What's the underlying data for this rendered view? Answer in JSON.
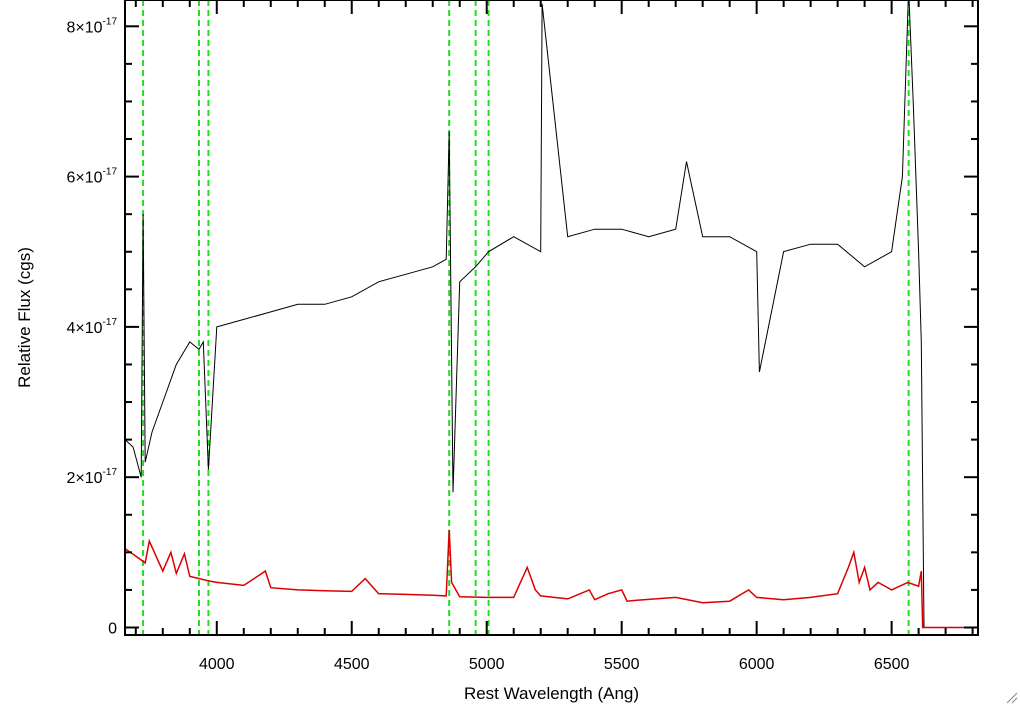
{
  "chart_data": {
    "type": "line",
    "xlabel": "Rest Wavelength (Ang)",
    "ylabel": "Relative Flux (cgs)",
    "xlim": [
      3660,
      6820
    ],
    "ylim": [
      -1e-18,
      8.35e-17
    ],
    "x_ticks": [
      4000,
      4500,
      5000,
      5500,
      6000,
      6500
    ],
    "x_tick_labels": [
      "4000",
      "4500",
      "5000",
      "5500",
      "6000",
      "6500"
    ],
    "y_ticks": [
      0,
      2e-17,
      4e-17,
      6e-17,
      8e-17
    ],
    "y_tick_labels": [
      {
        "mantissa": "0",
        "exponent": ""
      },
      {
        "mantissa": "2×10",
        "exponent": "-17"
      },
      {
        "mantissa": "4×10",
        "exponent": "-17"
      },
      {
        "mantissa": "6×10",
        "exponent": "-17"
      },
      {
        "mantissa": "8×10",
        "exponent": "-17"
      }
    ],
    "grid": false,
    "vertical_lines": [
      3727,
      3934,
      3969,
      4861,
      4959,
      5007,
      6563
    ],
    "series": [
      {
        "color": "#000000",
        "x": [
          3660,
          3690,
          3720,
          3727,
          3735,
          3760,
          3800,
          3850,
          3900,
          3934,
          3950,
          3969,
          4000,
          4100,
          4200,
          4300,
          4400,
          4500,
          4600,
          4700,
          4800,
          4850,
          4861,
          4875,
          4900,
          4959,
          5007,
          5100,
          5200,
          5205,
          5300,
          5400,
          5500,
          5600,
          5700,
          5740,
          5800,
          5900,
          6000,
          6010,
          6100,
          6200,
          6300,
          6400,
          6500,
          6540,
          6563,
          6580,
          6600,
          6610,
          6620,
          6820
        ],
        "y": [
          2.5e-17,
          2.4e-17,
          2e-17,
          5.5e-17,
          2.2e-17,
          2.6e-17,
          3e-17,
          3.5e-17,
          3.8e-17,
          3.7e-17,
          3.8e-17,
          2.1e-17,
          4e-17,
          4.1e-17,
          4.2e-17,
          4.3e-17,
          4.3e-17,
          4.4e-17,
          4.6e-17,
          4.7e-17,
          4.8e-17,
          4.9e-17,
          6.6e-17,
          1.8e-17,
          4.6e-17,
          4.8e-17,
          5e-17,
          5.2e-17,
          5e-17,
          8.3e-17,
          5.2e-17,
          5.3e-17,
          5.3e-17,
          5.2e-17,
          5.3e-17,
          6.2e-17,
          5.2e-17,
          5.2e-17,
          5e-17,
          3.4e-17,
          5e-17,
          5.1e-17,
          5.1e-17,
          4.8e-17,
          5e-17,
          6e-17,
          8.5e-17,
          7e-17,
          5e-17,
          3.8e-17,
          0.0,
          0.0
        ]
      },
      {
        "color": "#dd0000",
        "x": [
          3660,
          3700,
          3735,
          3750,
          3800,
          3830,
          3850,
          3880,
          3900,
          3970,
          4000,
          4100,
          4180,
          4200,
          4300,
          4400,
          4500,
          4550,
          4600,
          4700,
          4800,
          4850,
          4861,
          4870,
          4900,
          5000,
          5100,
          5150,
          5180,
          5200,
          5300,
          5380,
          5400,
          5450,
          5500,
          5520,
          5550,
          5700,
          5800,
          5900,
          5970,
          6000,
          6100,
          6200,
          6300,
          6340,
          6360,
          6380,
          6400,
          6420,
          6450,
          6500,
          6560,
          6600,
          6610,
          6615,
          6820
        ],
        "y": [
          1.05e-17,
          9.5e-18,
          8.6e-18,
          1.15e-17,
          7.5e-18,
          1e-17,
          7.2e-18,
          9.8e-18,
          6.8e-18,
          6.2e-18,
          6e-18,
          5.6e-18,
          7.5e-18,
          5.3e-18,
          5e-18,
          4.9e-18,
          4.8e-18,
          6.5e-18,
          4.5e-18,
          4.4e-18,
          4.3e-18,
          4.2e-18,
          1.3e-17,
          6e-18,
          4.1e-18,
          4e-18,
          4e-18,
          8e-18,
          5e-18,
          4.2e-18,
          3.8e-18,
          5e-18,
          3.7e-18,
          4.5e-18,
          5e-18,
          3.5e-18,
          3.6e-18,
          4e-18,
          3.3e-18,
          3.5e-18,
          5e-18,
          4e-18,
          3.7e-18,
          4e-18,
          4.5e-18,
          8e-18,
          1e-17,
          6e-18,
          8e-18,
          5e-18,
          6e-18,
          5e-18,
          6e-18,
          5.5e-18,
          7.5e-18,
          0.0,
          0.0
        ]
      }
    ]
  }
}
